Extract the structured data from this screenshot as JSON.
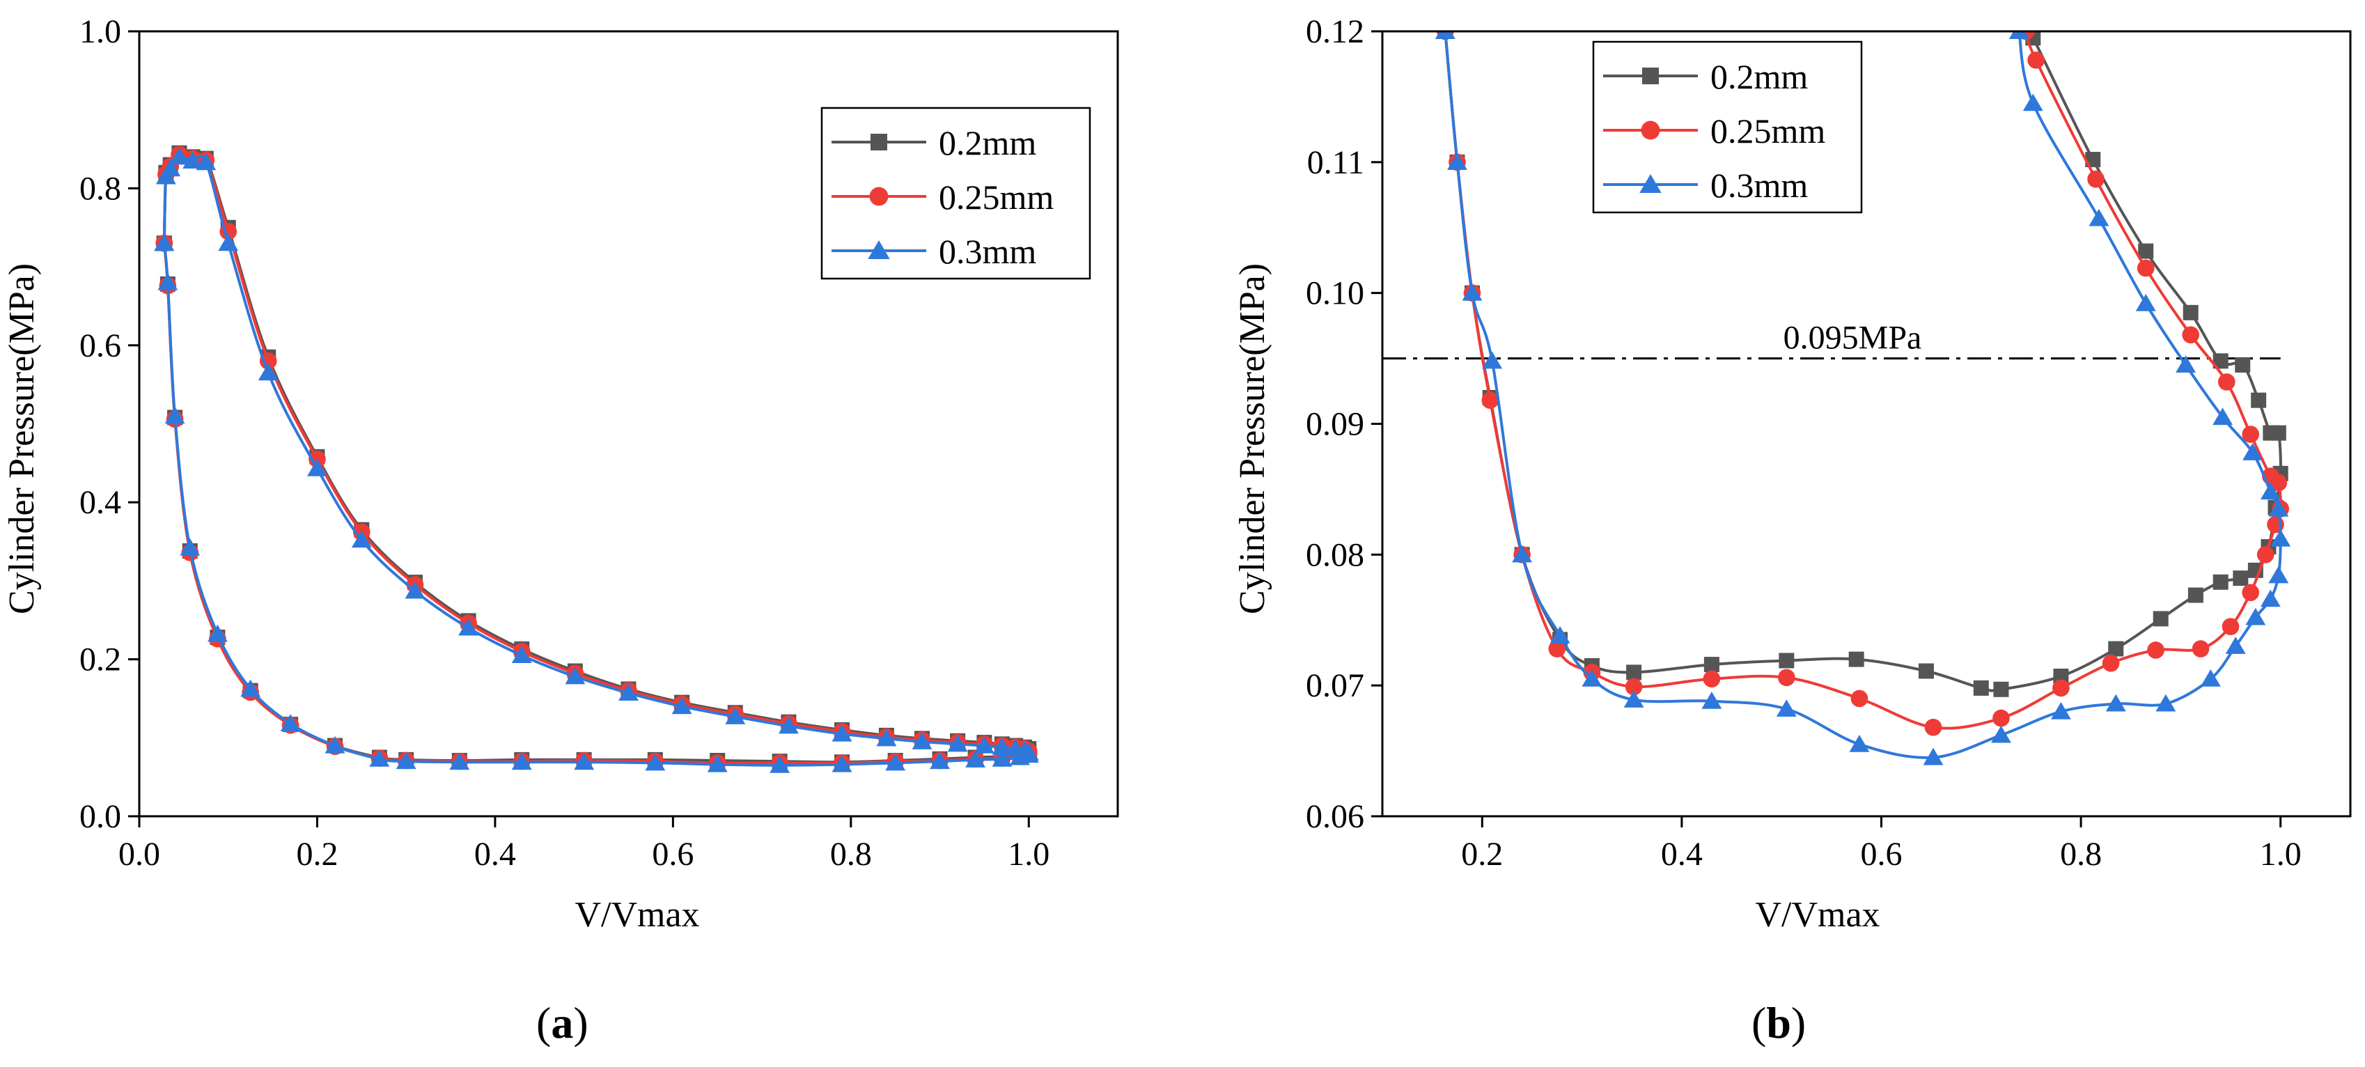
{
  "colors": {
    "s02": "#555555",
    "s025": "#ef3b36",
    "s03": "#2f78db",
    "axis": "#000000",
    "ref": "#000000"
  },
  "chart_data": [
    {
      "type": "line",
      "panel": "a",
      "panel_label": "a",
      "xlabel": "V/Vmax",
      "ylabel": "Cylinder Pressure(MPa)",
      "xlim": [
        0.0,
        1.1
      ],
      "ylim": [
        0.0,
        1.0
      ],
      "xticks": [
        0.0,
        0.2,
        0.4,
        0.6,
        0.8,
        1.0
      ],
      "yticks": [
        0.0,
        0.2,
        0.4,
        0.6,
        0.8,
        1.0
      ],
      "xtick_labels": [
        "0.0",
        "0.2",
        "0.4",
        "0.6",
        "0.8",
        "1.0"
      ],
      "ytick_labels": [
        "0.0",
        "0.2",
        "0.4",
        "0.6",
        "0.8",
        "1.0"
      ],
      "legend": "top-right",
      "series": [
        {
          "name": "0.2mm",
          "color_key": "s02",
          "marker": "square",
          "x": [
            0.028,
            0.03,
            0.035,
            0.045,
            0.06,
            0.075,
            0.1,
            0.145,
            0.2,
            0.25,
            0.31,
            0.37,
            0.43,
            0.49,
            0.55,
            0.61,
            0.67,
            0.73,
            0.79,
            0.84,
            0.88,
            0.92,
            0.95,
            0.97,
            0.985,
            0.995,
            1.0,
            1.0,
            0.99,
            0.97,
            0.94,
            0.9,
            0.85,
            0.79,
            0.72,
            0.65,
            0.58,
            0.5,
            0.43,
            0.36,
            0.3,
            0.27,
            0.22,
            0.17,
            0.125,
            0.088,
            0.057,
            0.04,
            0.032,
            0.028
          ],
          "y": [
            0.73,
            0.82,
            0.83,
            0.845,
            0.84,
            0.838,
            0.75,
            0.585,
            0.458,
            0.365,
            0.298,
            0.249,
            0.213,
            0.185,
            0.162,
            0.145,
            0.132,
            0.12,
            0.11,
            0.103,
            0.099,
            0.096,
            0.094,
            0.092,
            0.09,
            0.088,
            0.086,
            0.081,
            0.078,
            0.076,
            0.075,
            0.073,
            0.071,
            0.069,
            0.07,
            0.071,
            0.072,
            0.072,
            0.072,
            0.071,
            0.072,
            0.075,
            0.09,
            0.117,
            0.16,
            0.228,
            0.338,
            0.508,
            0.678,
            0.73
          ]
        },
        {
          "name": "0.25mm",
          "color_key": "s025",
          "marker": "circle",
          "x": [
            0.028,
            0.03,
            0.035,
            0.045,
            0.06,
            0.075,
            0.1,
            0.145,
            0.2,
            0.25,
            0.31,
            0.37,
            0.43,
            0.49,
            0.55,
            0.61,
            0.67,
            0.73,
            0.79,
            0.84,
            0.88,
            0.92,
            0.95,
            0.97,
            0.985,
            0.995,
            1.0,
            1.0,
            0.99,
            0.97,
            0.94,
            0.9,
            0.85,
            0.79,
            0.72,
            0.65,
            0.58,
            0.5,
            0.43,
            0.36,
            0.3,
            0.27,
            0.22,
            0.17,
            0.125,
            0.088,
            0.057,
            0.04,
            0.032,
            0.028
          ],
          "y": [
            0.73,
            0.818,
            0.828,
            0.843,
            0.838,
            0.836,
            0.745,
            0.58,
            0.455,
            0.362,
            0.295,
            0.246,
            0.21,
            0.182,
            0.16,
            0.143,
            0.13,
            0.118,
            0.108,
            0.101,
            0.097,
            0.094,
            0.092,
            0.09,
            0.088,
            0.086,
            0.083,
            0.079,
            0.076,
            0.074,
            0.073,
            0.071,
            0.07,
            0.068,
            0.068,
            0.068,
            0.07,
            0.071,
            0.07,
            0.07,
            0.071,
            0.074,
            0.089,
            0.116,
            0.158,
            0.226,
            0.336,
            0.506,
            0.676,
            0.73
          ]
        },
        {
          "name": "0.3mm",
          "color_key": "s03",
          "marker": "triangle",
          "x": [
            0.028,
            0.03,
            0.035,
            0.045,
            0.06,
            0.075,
            0.1,
            0.145,
            0.2,
            0.25,
            0.31,
            0.37,
            0.43,
            0.49,
            0.55,
            0.61,
            0.67,
            0.73,
            0.79,
            0.84,
            0.88,
            0.92,
            0.95,
            0.97,
            0.985,
            0.995,
            1.0,
            1.0,
            0.99,
            0.97,
            0.94,
            0.9,
            0.85,
            0.79,
            0.72,
            0.65,
            0.58,
            0.5,
            0.43,
            0.36,
            0.3,
            0.27,
            0.22,
            0.17,
            0.125,
            0.088,
            0.057,
            0.04,
            0.032,
            0.028
          ],
          "y": [
            0.73,
            0.815,
            0.825,
            0.84,
            0.835,
            0.833,
            0.73,
            0.565,
            0.443,
            0.352,
            0.287,
            0.24,
            0.205,
            0.178,
            0.157,
            0.14,
            0.127,
            0.115,
            0.105,
            0.099,
            0.095,
            0.092,
            0.09,
            0.088,
            0.086,
            0.084,
            0.081,
            0.078,
            0.075,
            0.073,
            0.072,
            0.07,
            0.068,
            0.066,
            0.065,
            0.066,
            0.068,
            0.069,
            0.069,
            0.069,
            0.07,
            0.073,
            0.09,
            0.118,
            0.162,
            0.232,
            0.342,
            0.51,
            0.68,
            0.73
          ]
        }
      ]
    },
    {
      "type": "line",
      "panel": "b",
      "panel_label": "b",
      "xlabel": "V/Vmax",
      "ylabel": "Cylinder Pressure(MPa)",
      "xlim": [
        0.1,
        1.07
      ],
      "ylim": [
        0.06,
        0.12
      ],
      "xticks": [
        0.2,
        0.4,
        0.6,
        0.8,
        1.0
      ],
      "yticks": [
        0.06,
        0.07,
        0.08,
        0.09,
        0.1,
        0.11,
        0.12
      ],
      "xtick_labels": [
        "0.2",
        "0.4",
        "0.6",
        "0.8",
        "1.0"
      ],
      "ytick_labels": [
        "0.06",
        "0.07",
        "0.08",
        "0.09",
        "0.10",
        "0.11",
        "0.12"
      ],
      "legend": "top-left",
      "reference_line": {
        "y": 0.095,
        "label": "0.095MPa",
        "x_start": 0.1,
        "x_end": 1.0
      },
      "series": [
        {
          "name": "0.2mm",
          "color_key": "s02",
          "marker": "square",
          "x": [
            0.163,
            0.175,
            0.19,
            0.208,
            0.24,
            0.278,
            0.31,
            0.352,
            0.43,
            0.505,
            0.575,
            0.645,
            0.7,
            0.72,
            0.78,
            0.835,
            0.88,
            0.915,
            0.94,
            0.96,
            0.975,
            0.988,
            0.995,
            1.0,
            0.998,
            0.99,
            0.978,
            0.962,
            0.94,
            0.91,
            0.865,
            0.812,
            0.752,
            0.745
          ],
          "y": [
            0.12,
            0.11,
            0.1,
            0.092,
            0.08,
            0.0735,
            0.0715,
            0.071,
            0.0716,
            0.0719,
            0.072,
            0.0711,
            0.0698,
            0.0697,
            0.0707,
            0.0728,
            0.0751,
            0.0769,
            0.0779,
            0.0782,
            0.0788,
            0.0806,
            0.0836,
            0.0862,
            0.0893,
            0.0893,
            0.0918,
            0.0945,
            0.0948,
            0.0985,
            0.1032,
            0.1102,
            0.1195,
            0.12
          ]
        },
        {
          "name": "0.25mm",
          "color_key": "s025",
          "marker": "circle",
          "x": [
            0.163,
            0.175,
            0.19,
            0.208,
            0.24,
            0.275,
            0.31,
            0.352,
            0.43,
            0.505,
            0.578,
            0.652,
            0.72,
            0.78,
            0.83,
            0.875,
            0.92,
            0.95,
            0.97,
            0.985,
            0.995,
            1.0,
            0.998,
            0.99,
            0.97,
            0.946,
            0.91,
            0.865,
            0.815,
            0.755,
            0.745
          ],
          "y": [
            0.12,
            0.11,
            0.1,
            0.0918,
            0.08,
            0.0728,
            0.071,
            0.0699,
            0.0705,
            0.0706,
            0.069,
            0.0668,
            0.0675,
            0.0698,
            0.0717,
            0.0727,
            0.0728,
            0.0745,
            0.0771,
            0.08,
            0.0823,
            0.0835,
            0.0855,
            0.086,
            0.0892,
            0.0932,
            0.0968,
            0.1019,
            0.1087,
            0.1178,
            0.12
          ]
        },
        {
          "name": "0.3mm",
          "color_key": "s03",
          "marker": "triangle",
          "x": [
            0.163,
            0.175,
            0.19,
            0.21,
            0.24,
            0.278,
            0.31,
            0.352,
            0.43,
            0.505,
            0.578,
            0.652,
            0.72,
            0.78,
            0.835,
            0.885,
            0.93,
            0.955,
            0.975,
            0.99,
            0.998,
            1.0,
            0.998,
            0.99,
            0.972,
            0.942,
            0.905,
            0.865,
            0.818,
            0.752,
            0.738
          ],
          "y": [
            0.12,
            0.11,
            0.1,
            0.0948,
            0.08,
            0.0738,
            0.0705,
            0.0689,
            0.0688,
            0.0682,
            0.0655,
            0.0645,
            0.0662,
            0.068,
            0.0686,
            0.0686,
            0.0705,
            0.073,
            0.0752,
            0.0766,
            0.0784,
            0.0812,
            0.0835,
            0.0848,
            0.0878,
            0.0905,
            0.0945,
            0.0992,
            0.1057,
            0.1145,
            0.12
          ]
        }
      ]
    }
  ]
}
